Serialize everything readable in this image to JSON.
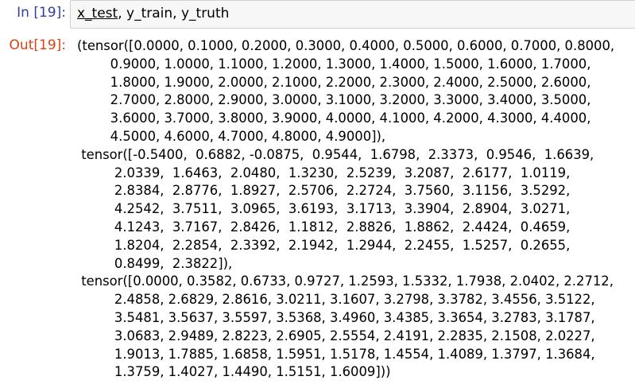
{
  "input": {
    "prompt": "In [19]:",
    "code_first": "x_test",
    "code_rest": ", y_train, y_truth"
  },
  "output": {
    "prompt": "Out[19]:",
    "lines": [
      "(tensor([0.0000, 0.1000, 0.2000, 0.3000, 0.4000, 0.5000, 0.6000, 0.7000, 0.8000,",
      "        0.9000, 1.0000, 1.1000, 1.2000, 1.3000, 1.4000, 1.5000, 1.6000, 1.7000,",
      "        1.8000, 1.9000, 2.0000, 2.1000, 2.2000, 2.3000, 2.4000, 2.5000, 2.6000,",
      "        2.7000, 2.8000, 2.9000, 3.0000, 3.1000, 3.2000, 3.3000, 3.4000, 3.5000,",
      "        3.6000, 3.7000, 3.8000, 3.9000, 4.0000, 4.1000, 4.2000, 4.3000, 4.4000,",
      "        4.5000, 4.6000, 4.7000, 4.8000, 4.9000]),",
      " tensor([-0.5400,  0.6882, -0.0875,  0.9544,  1.6798,  2.3373,  0.9546,  1.6639,",
      "         2.0339,  1.6463,  2.0480,  1.3230,  2.5239,  3.2087,  2.6177,  1.0119,",
      "         2.8384,  2.8776,  1.8927,  2.5706,  2.2724,  3.7560,  3.1156,  3.5292,",
      "         4.2542,  3.7511,  3.0965,  3.6193,  3.1713,  3.3904,  2.8904,  3.0271,",
      "         4.1243,  3.7167,  2.8426,  1.1812,  2.8826,  1.8862,  2.4424,  0.4659,",
      "         1.8204,  2.2854,  2.3392,  2.1942,  1.2944,  2.2455,  1.5257,  0.2655,",
      "         0.8499,  2.3822]),",
      " tensor([0.0000, 0.3582, 0.6733, 0.9727, 1.2593, 1.5332, 1.7938, 2.0402, 2.2712,",
      "         2.4858, 2.6829, 2.8616, 3.0211, 3.1607, 3.2798, 3.3782, 3.4556, 3.5122,",
      "         3.5481, 3.5637, 3.5597, 3.5368, 3.4960, 3.4385, 3.3654, 3.2783, 3.1787,",
      "         3.0683, 2.9489, 2.8223, 2.6905, 2.5554, 2.4191, 2.2835, 2.1508, 2.0227,",
      "         1.9013, 1.7885, 1.6858, 1.5951, 1.5178, 1.4554, 1.4089, 1.3797, 1.3684,",
      "         1.3759, 1.4027, 1.4490, 1.5151, 1.6009]))"
    ]
  },
  "colors": {
    "in_prompt": "#303f9f",
    "out_prompt": "#d84315",
    "input_background": "#f7f7f7",
    "input_border": "#cfcfcf"
  }
}
